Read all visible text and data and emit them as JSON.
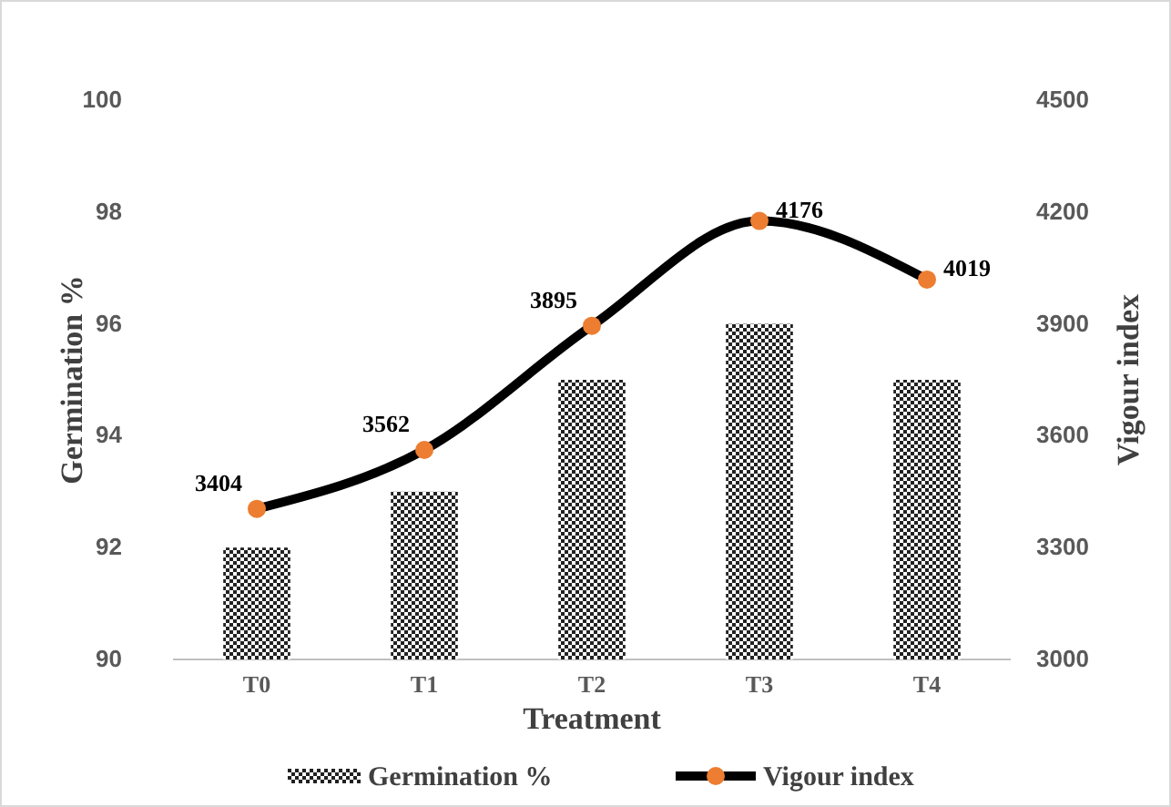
{
  "chart_data": {
    "type": "bar",
    "xlabel": "Treatment",
    "ylabel": "Germination %",
    "y2label": "Vigour index",
    "categories": [
      "T0",
      "T1",
      "T2",
      "T3",
      "T4"
    ],
    "series": [
      {
        "name": "Germination %",
        "color": "#222222",
        "values": [
          92,
          93,
          95,
          96,
          95
        ]
      },
      {
        "name": "Vigour index",
        "type": "line",
        "axis": "y2",
        "color": "#000000",
        "marker": "circle",
        "values": [
          3404,
          3562,
          3895,
          4176,
          4019
        ],
        "value_labels": [
          "3404",
          "3562",
          "3895",
          "4176",
          "4019"
        ]
      }
    ],
    "ylim": [
      90,
      100
    ],
    "yticks": [
      90,
      92,
      94,
      96,
      98,
      100
    ],
    "y2lim": [
      3000,
      4500
    ],
    "y2ticks": [
      3000,
      3300,
      3600,
      3900,
      4200,
      4500
    ],
    "legend": "bottom",
    "grid": false
  }
}
